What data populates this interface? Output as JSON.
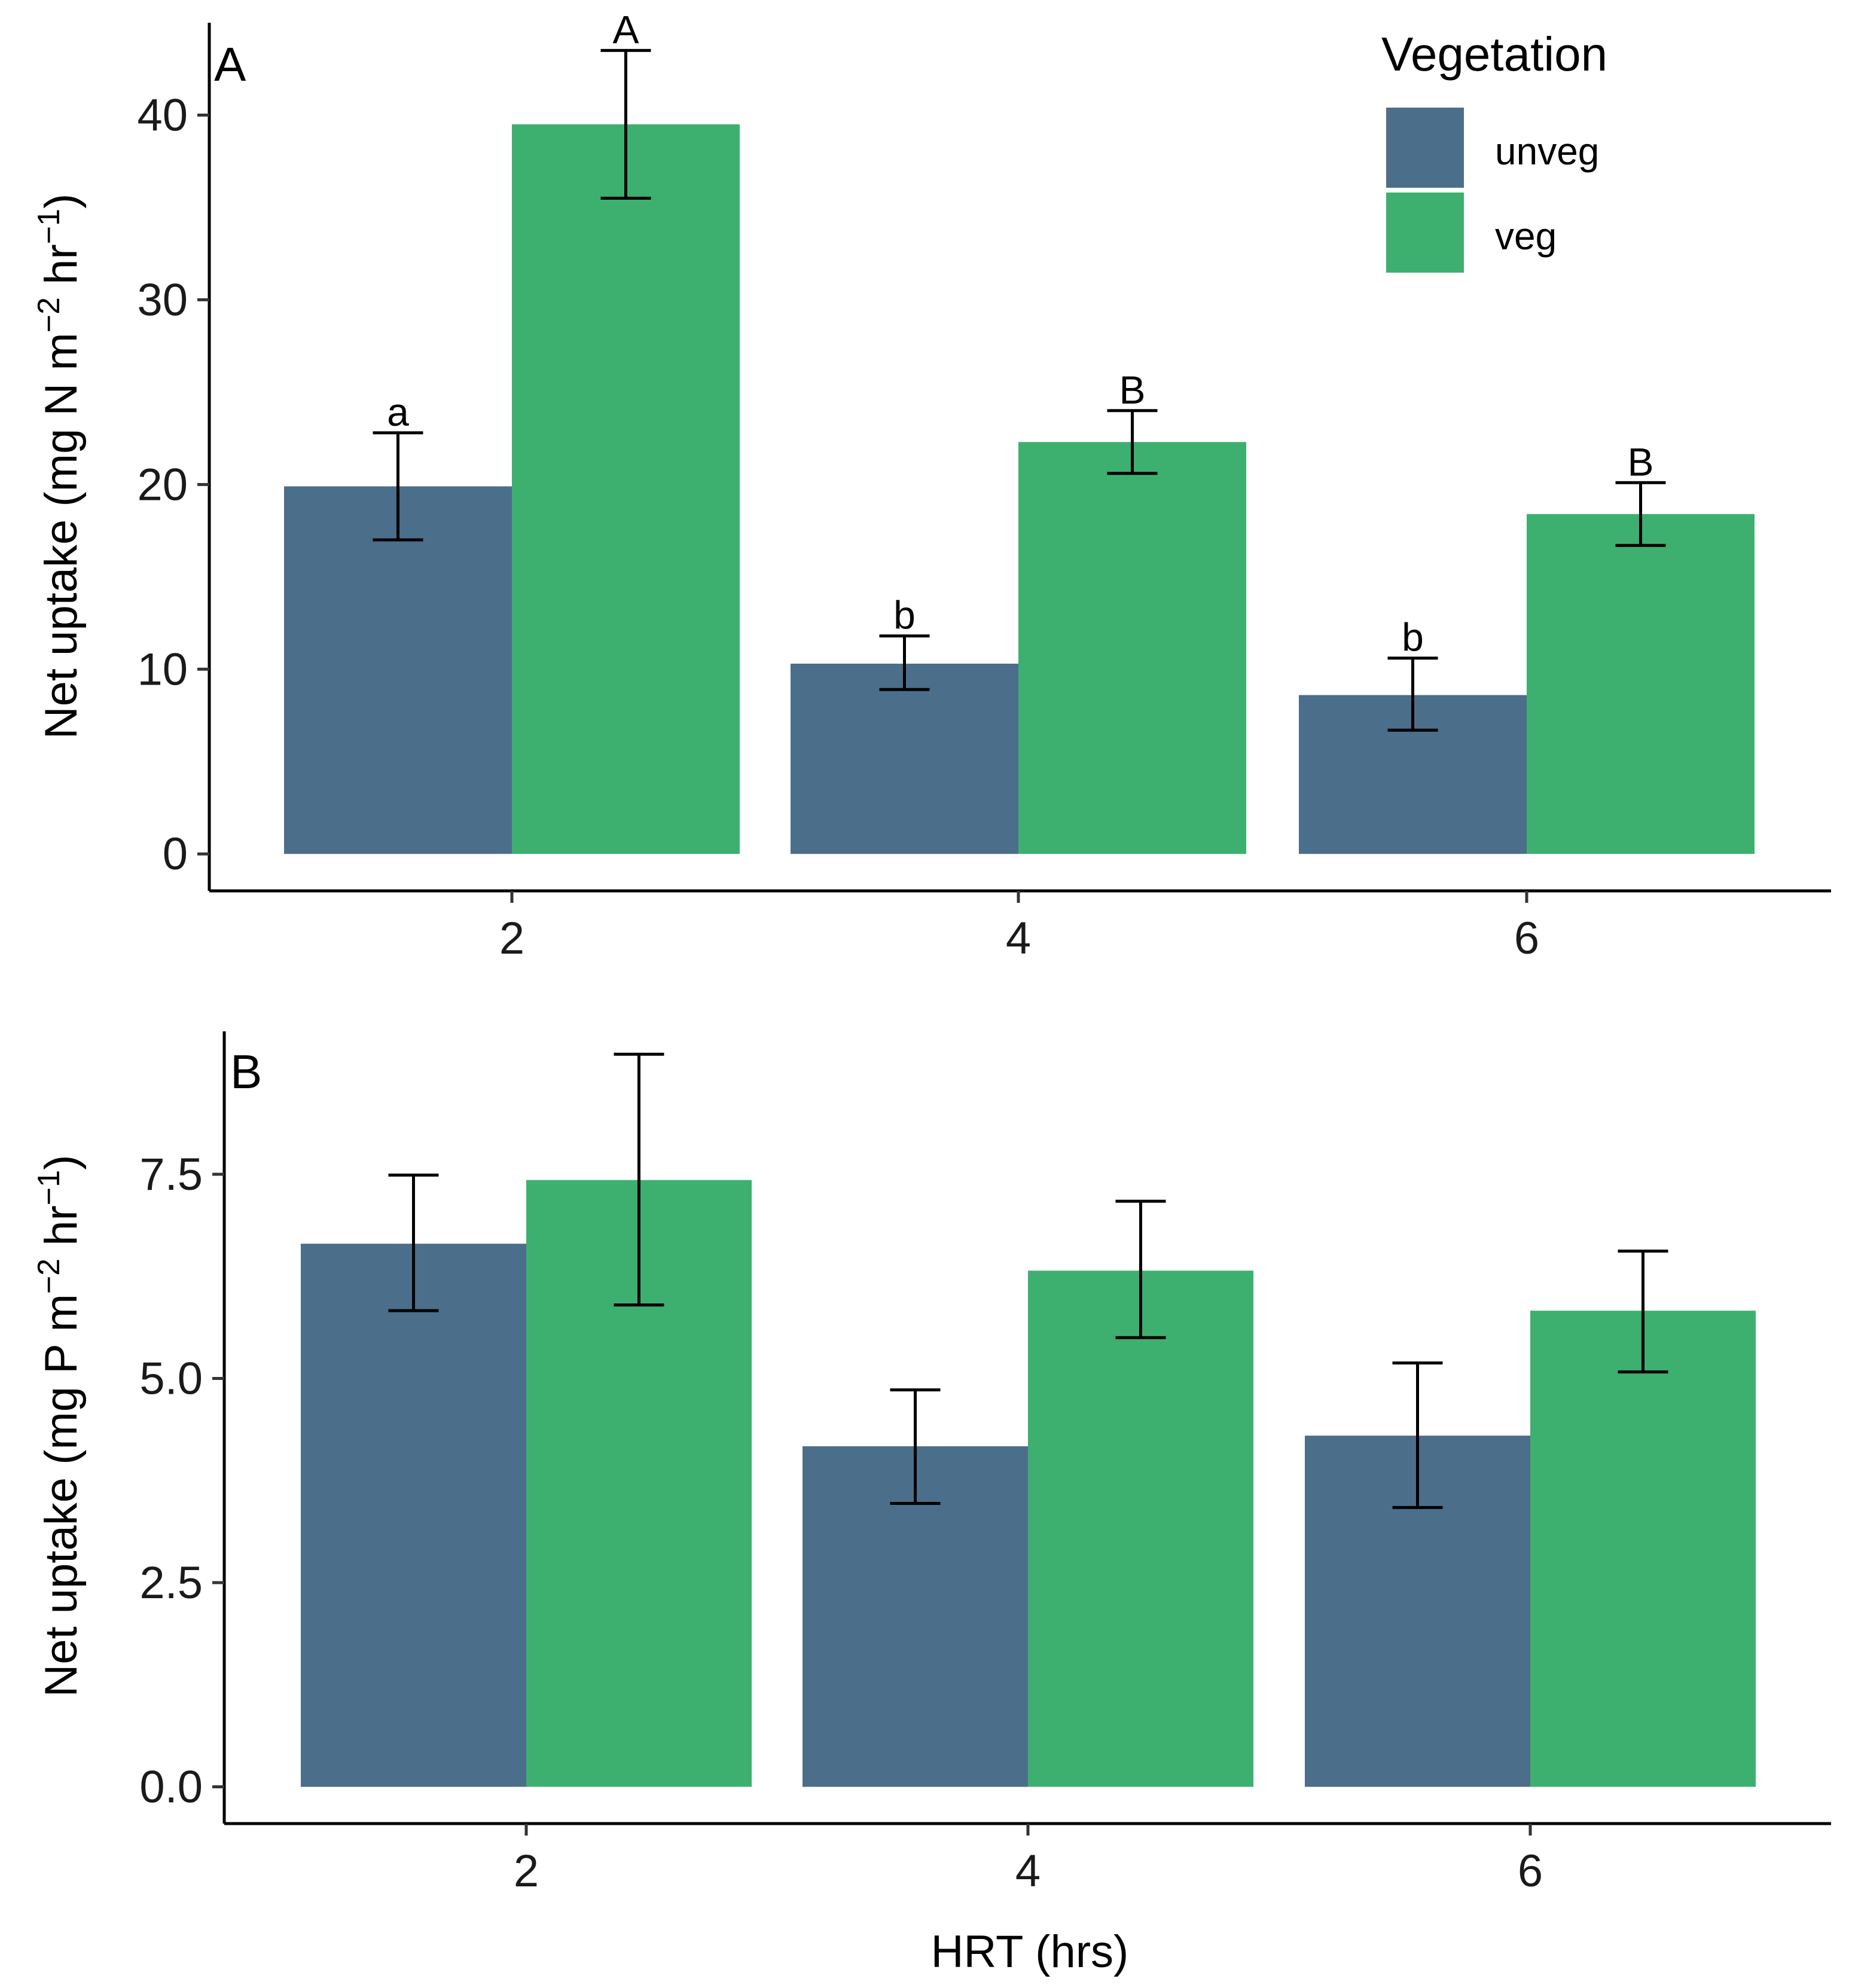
{
  "chart_data": [
    {
      "panel": "A",
      "type": "bar",
      "xlabel": "",
      "ylabel": "Net uptake (mg N  m",
      "ylabel_sup1": "−2",
      "ylabel_mid": " hr",
      "ylabel_sup2": "−1",
      "ylabel_end": ")",
      "ylim": [
        -2,
        45
      ],
      "yticks": [
        0,
        10,
        20,
        30,
        40
      ],
      "ytick_labels": [
        "0",
        "10",
        "20",
        "30",
        "40"
      ],
      "categories": [
        "2",
        "4",
        "6"
      ],
      "series": [
        {
          "name": "unveg",
          "values": [
            19.9,
            10.3,
            8.6
          ],
          "err_low": [
            17.0,
            8.9,
            6.7
          ],
          "err_high": [
            22.8,
            11.8,
            10.6
          ],
          "labels": [
            "a",
            "b",
            "b"
          ]
        },
        {
          "name": "veg",
          "values": [
            39.5,
            22.3,
            18.4
          ],
          "err_low": [
            35.5,
            20.6,
            16.7
          ],
          "err_high": [
            43.5,
            24.0,
            20.1
          ],
          "labels": [
            "A",
            "B",
            "B"
          ]
        }
      ]
    },
    {
      "panel": "B",
      "type": "bar",
      "xlabel": "HRT (hrs)",
      "ylabel": "Net uptake (mg P  m",
      "ylabel_sup1": "−2",
      "ylabel_mid": " hr",
      "ylabel_sup2": "−1",
      "ylabel_end": ")",
      "ylim": [
        -0.45,
        9.25
      ],
      "yticks": [
        0,
        2.5,
        5.0,
        7.5
      ],
      "ytick_labels": [
        "0.0",
        "2.5",
        "5.0",
        "7.5"
      ],
      "categories": [
        "2",
        "4",
        "6"
      ],
      "series": [
        {
          "name": "unveg",
          "values": [
            6.65,
            4.17,
            4.3
          ],
          "err_low": [
            5.83,
            3.47,
            3.42
          ],
          "err_high": [
            7.49,
            4.86,
            5.19
          ],
          "labels": [
            "",
            "",
            ""
          ]
        },
        {
          "name": "veg",
          "values": [
            7.43,
            6.32,
            5.83
          ],
          "err_low": [
            5.9,
            5.5,
            5.08
          ],
          "err_high": [
            8.97,
            7.17,
            6.56
          ],
          "labels": [
            "",
            "",
            ""
          ]
        }
      ]
    }
  ],
  "legend": {
    "title": "Vegetation",
    "items": [
      {
        "label": "unveg",
        "color": "#4b6e8a"
      },
      {
        "label": "veg",
        "color": "#3db070"
      }
    ]
  }
}
